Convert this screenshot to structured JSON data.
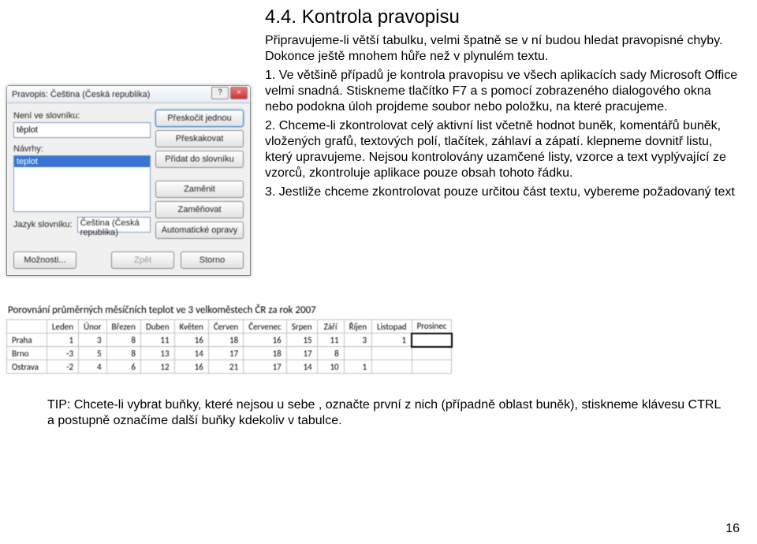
{
  "heading": "4.4. Kontrola pravopisu",
  "para_intro": "Připravujeme-li větší tabulku, velmi špatně se v ní budou hledat pravopisné chyby. Dokonce ještě mnohem hůře než v plynulém textu.",
  "para_1": "1. Ve většině případů je kontrola pravopisu ve všech aplikacích sady Microsoft Office velmi snadná. Stiskneme tlačítko F7 a s pomocí zobrazeného dialogového okna nebo podokna úloh projdeme soubor nebo položku, na které pracujeme.",
  "para_2": "2. Chceme-li zkontrolovat celý aktivní list včetně hodnot buněk, komentářů buněk, vložených grafů, textových polí, tlačítek, záhlaví a zápatí. klepneme dovnitř listu, který upravujeme. Nejsou kontrolovány uzamčené listy, vzorce a text vyplývající ze vzorců, zkontroluje aplikace pouze obsah tohoto řádku.",
  "para_3": "3. Jestliže chceme zkontrolovat pouze určitou část textu, vybereme požadovaný text",
  "dialog": {
    "title": "Pravopis: Čeština (Česká republika)",
    "help_icon": "?",
    "close_icon": "×",
    "not_in_dict_label": "Není ve slovníku:",
    "not_in_dict_value": "těplot",
    "suggestions_label": "Návrhy:",
    "suggestion_selected": "teplot",
    "lang_label": "Jazyk slovníku:",
    "lang_value": "Čeština (Česká republika)",
    "btn_ignore_once": "Přeskočit jednou",
    "btn_ignore_all": "Přeskakovat",
    "btn_add": "Přidat do slovníku",
    "btn_change": "Zaměnit",
    "btn_change_all": "Zaměňovat",
    "btn_autocorrect": "Automatické opravy",
    "btn_options": "Možnosti...",
    "btn_back": "Zpět",
    "btn_cancel": "Storno"
  },
  "table": {
    "title": "Porovnání průměrných měsíčních teplot ve 3 velkoměstech ČR za rok 2007",
    "months": [
      "Leden",
      "Únor",
      "Březen",
      "Duben",
      "Květen",
      "Červen",
      "Červenec",
      "Srpen",
      "Září",
      "Říjen",
      "Listopad",
      "Prosinec"
    ],
    "rows": [
      {
        "city": "Praha",
        "vals": [
          "1",
          "3",
          "8",
          "11",
          "16",
          "18",
          "16",
          "15",
          "11",
          "3",
          "1",
          ""
        ]
      },
      {
        "city": "Brno",
        "vals": [
          "-3",
          "5",
          "8",
          "13",
          "14",
          "17",
          "18",
          "17",
          "8",
          "",
          "",
          ""
        ]
      },
      {
        "city": "Ostrava",
        "vals": [
          "-2",
          "4",
          "6",
          "12",
          "16",
          "21",
          "17",
          "14",
          "10",
          "1",
          "",
          ""
        ]
      }
    ],
    "selected_cell": {
      "row": 0,
      "col": 11
    }
  },
  "tip": "TIP: Chcete-li vybrat buňky, které nejsou u sebe , označte první z nich (případně oblast buněk), stiskneme klávesu CTRL a postupně označíme další buňky kdekoliv v tabulce.",
  "page_number": "16",
  "colors": {
    "heading": "#000000"
  }
}
